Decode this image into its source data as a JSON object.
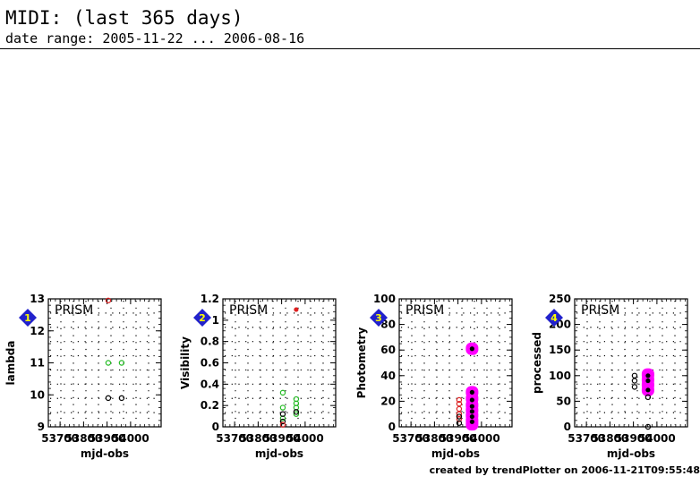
{
  "header": {
    "title": "MIDI: (last 365 days)",
    "subtitle": "date range: 2005-11-22 ... 2006-08-16"
  },
  "footer": "created by trendPlotter on 2006-11-21T09:55:48",
  "colors": {
    "badge": "#2222cc",
    "magenta": "#ff00ff",
    "green": "#22bb22",
    "red": "#dd2222",
    "black": "#000000"
  },
  "chart_data": [
    {
      "type": "scatter",
      "index": "1",
      "panel_label": "PRISM",
      "xlabel": "mjd-obs",
      "ylabel": "lambda",
      "xlim": [
        53650,
        54130
      ],
      "ylim": [
        9,
        13
      ],
      "xticks": [
        "53700",
        "53800",
        "53900",
        "54000"
      ],
      "yticks": [
        "9",
        "10",
        "11",
        "12",
        "13"
      ],
      "series": [
        {
          "color": "green",
          "style": "ring",
          "points": [
            [
              53905,
              11.0
            ],
            [
              53962,
              11.0
            ]
          ]
        },
        {
          "color": "black",
          "style": "ring",
          "points": [
            [
              53905,
              9.9
            ],
            [
              53962,
              9.9
            ]
          ]
        },
        {
          "color": "red",
          "style": "ring",
          "points": [
            [
              53905,
              12.95
            ]
          ]
        }
      ]
    },
    {
      "type": "scatter",
      "index": "2",
      "panel_label": "PRISM",
      "xlabel": "mjd-obs",
      "ylabel": "Visibility",
      "xlim": [
        53650,
        54130
      ],
      "ylim": [
        0,
        1.2
      ],
      "xticks": [
        "53700",
        "53800",
        "53900",
        "54000"
      ],
      "yticks": [
        "0",
        "0.2",
        "0.4",
        "0.6",
        "0.8",
        "1",
        "1.2"
      ],
      "series": [
        {
          "color": "green",
          "style": "ring",
          "points": [
            [
              53905,
              0.32
            ],
            [
              53905,
              0.18
            ],
            [
              53905,
              0.08
            ],
            [
              53962,
              0.26
            ],
            [
              53962,
              0.22
            ],
            [
              53962,
              0.18
            ],
            [
              53962,
              0.12
            ]
          ]
        },
        {
          "color": "black",
          "style": "ring",
          "points": [
            [
              53905,
              0.12
            ],
            [
              53905,
              0.05
            ],
            [
              53962,
              0.14
            ]
          ]
        },
        {
          "color": "red",
          "style": "dot",
          "points": [
            [
              53962,
              1.1
            ]
          ]
        },
        {
          "color": "red",
          "style": "ring",
          "points": [
            [
              53905,
              0.02
            ]
          ]
        }
      ]
    },
    {
      "type": "scatter",
      "index": "3",
      "panel_label": "PRISM",
      "xlabel": "mjd-obs",
      "ylabel": "Photometry",
      "xlim": [
        53650,
        54130
      ],
      "ylim": [
        0,
        100
      ],
      "xticks": [
        "53700",
        "53800",
        "53900",
        "54000"
      ],
      "yticks": [
        "0",
        "20",
        "40",
        "60",
        "80",
        "100"
      ],
      "series": [
        {
          "color": "magenta",
          "style": "blob",
          "points": [
            [
              53960,
              61
            ],
            [
              53960,
              27
            ],
            [
              53960,
              22
            ],
            [
              53960,
              17
            ],
            [
              53960,
              13
            ],
            [
              53960,
              9
            ],
            [
              53960,
              5
            ],
            [
              53960,
              2
            ]
          ]
        },
        {
          "color": "black",
          "style": "dot",
          "points": [
            [
              53960,
              61
            ],
            [
              53960,
              27
            ],
            [
              53960,
              21
            ],
            [
              53960,
              16
            ],
            [
              53960,
              12
            ],
            [
              53960,
              8
            ],
            [
              53960,
              4
            ]
          ]
        },
        {
          "color": "red",
          "style": "ring",
          "points": [
            [
              53905,
              21
            ],
            [
              53905,
              18
            ],
            [
              53905,
              14
            ],
            [
              53905,
              10
            ],
            [
              53905,
              6
            ]
          ]
        },
        {
          "color": "black",
          "style": "ring",
          "points": [
            [
              53905,
              8
            ],
            [
              53905,
              3
            ]
          ]
        }
      ]
    },
    {
      "type": "scatter",
      "index": "4",
      "panel_label": "PRISM",
      "xlabel": "mjd-obs",
      "ylabel": "processed",
      "xlim": [
        53650,
        54130
      ],
      "ylim": [
        0,
        250
      ],
      "xticks": [
        "53700",
        "53800",
        "53900",
        "54000"
      ],
      "yticks": [
        "0",
        "50",
        "100",
        "150",
        "200",
        "250"
      ],
      "series": [
        {
          "color": "magenta",
          "style": "blob",
          "points": [
            [
              53962,
              102
            ],
            [
              53962,
              92
            ],
            [
              53962,
              82
            ],
            [
              53962,
              72
            ]
          ]
        },
        {
          "color": "black",
          "style": "dot",
          "points": [
            [
              53962,
              100
            ],
            [
              53962,
              90
            ],
            [
              53962,
              72
            ]
          ]
        },
        {
          "color": "black",
          "style": "ring",
          "points": [
            [
              53905,
              100
            ],
            [
              53905,
              90
            ],
            [
              53905,
              78
            ],
            [
              53962,
              58
            ],
            [
              53962,
              0
            ]
          ]
        }
      ]
    }
  ]
}
